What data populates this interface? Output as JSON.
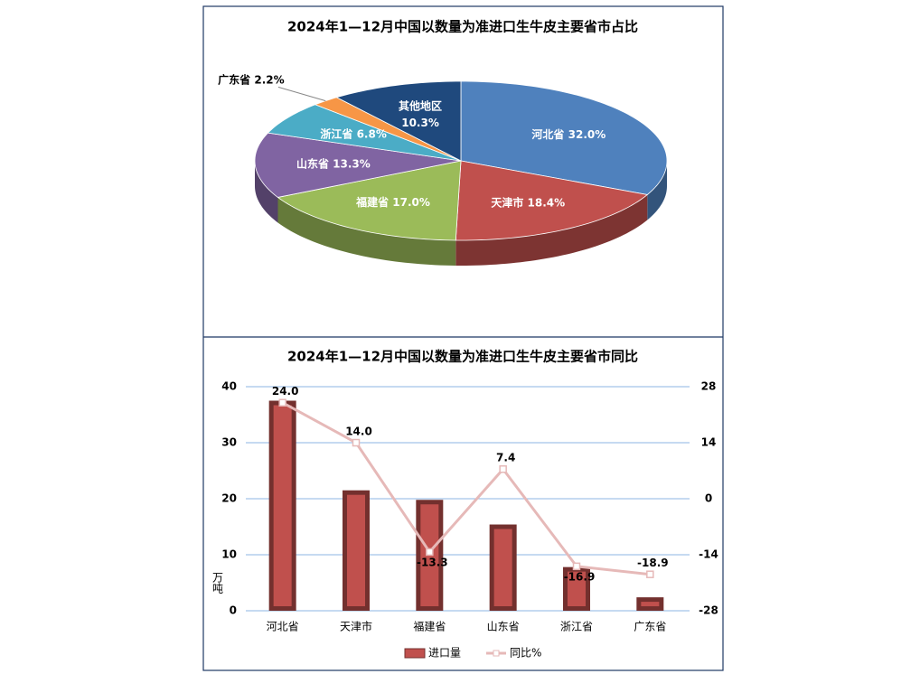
{
  "chart_data": [
    {
      "type": "pie",
      "title": "2024年1—12月中国以数量为准进口生牛皮主要省市占比",
      "categories": [
        "河北省",
        "天津市",
        "福建省",
        "山东省",
        "浙江省",
        "广东省",
        "其他地区"
      ],
      "values": [
        32.0,
        18.4,
        17.0,
        13.3,
        6.8,
        2.2,
        10.3
      ],
      "value_labels": [
        "32.0%",
        "18.4%",
        "17.0%",
        "13.3%",
        "6.8%",
        "2.2%",
        "10.3%"
      ],
      "colors": [
        "#4f81bd",
        "#c0504d",
        "#9bbb59",
        "#8064a2",
        "#4bacc6",
        "#f79646",
        "#1f497d"
      ]
    },
    {
      "type": "bar-line",
      "title": "2024年1—12月中国以数量为准进口生牛皮主要省市同比",
      "ylabel": "万吨",
      "categories": [
        "河北省",
        "天津市",
        "福建省",
        "山东省",
        "浙江省",
        "广东省"
      ],
      "series": [
        {
          "name": "进口量",
          "type": "bar",
          "color": "#c0504d",
          "values": [
            37.5,
            21.5,
            19.8,
            15.4,
            7.8,
            2.4
          ]
        },
        {
          "name": "同比%",
          "type": "line",
          "axis": "y2",
          "color": "#e6b9b8",
          "values": [
            24.0,
            14.0,
            -13.3,
            7.4,
            -16.9,
            -18.9
          ],
          "value_labels": [
            "24.0",
            "14.0",
            "-13.3",
            "7.4",
            "-16.9",
            "-18.9"
          ]
        }
      ],
      "ylim": [
        0,
        40
      ],
      "yticks": [
        0,
        10,
        20,
        30,
        40
      ],
      "y2lim": [
        -28,
        28
      ],
      "y2ticks": [
        -28,
        -14,
        0,
        14,
        28
      ],
      "grid": true
    }
  ]
}
